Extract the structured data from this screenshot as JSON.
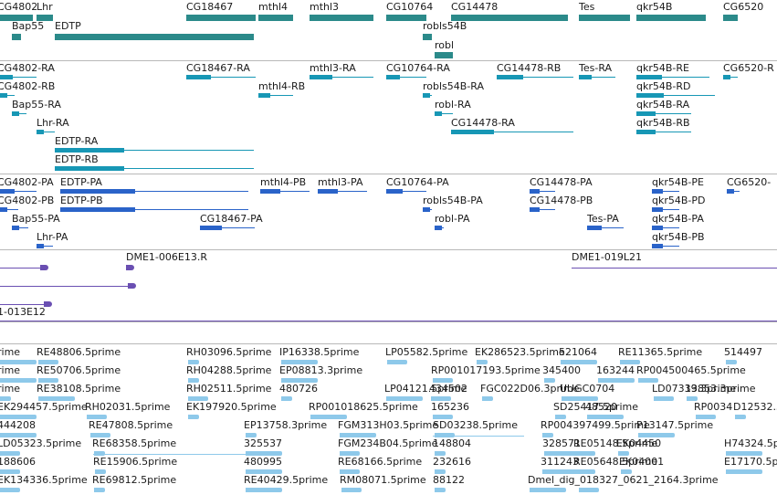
{
  "tracks": {
    "genes": {
      "labels": [
        "CG4802",
        "Lhr",
        "CG18467",
        "mthl4",
        "mthl3",
        "CG10764",
        "CG14478",
        "Tes",
        "qkr54B",
        "CG6520",
        "Bap55",
        "EDTP",
        "robls54B",
        "robl"
      ]
    },
    "transcripts": {
      "labels": [
        "CG4802-RA",
        "CG18467-RA",
        "mthl3-RA",
        "CG10764-RA",
        "CG14478-RB",
        "Tes-RA",
        "qkr54B-RE",
        "CG6520-R",
        "CG4802-RB",
        "mthl4-RB",
        "robls54B-RA",
        "qkr54B-RD",
        "Bap55-RA",
        "robl-RA",
        "qkr54B-RA",
        "Lhr-RA",
        "CG14478-RA",
        "qkr54B-RB",
        "EDTP-RA",
        "EDTP-RB"
      ]
    },
    "proteins": {
      "labels": [
        "CG4802-PA",
        "EDTP-PA",
        "mthl4-PB",
        "mthl3-PA",
        "CG10764-PA",
        "CG14478-PA",
        "qkr54B-PE",
        "CG6520-",
        "CG4802-PB",
        "EDTP-PB",
        "robls54B-PA",
        "CG14478-PB",
        "qkr54B-PD",
        "Bap55-PA",
        "CG18467-PA",
        "robl-PA",
        "Tes-PA",
        "qkr54B-PA",
        "Lhr-PA",
        "qkr54B-PB"
      ]
    },
    "clones": {
      "labels": [
        "DME1-006E13.R",
        "DME1-019L21",
        "1-013E12"
      ]
    },
    "ests": {
      "labels": [
        "rime",
        "RE48806.5prime",
        "RH03096.5prime",
        "IP16338.5prime",
        "LP05582.5prime",
        "EK286523.5prime",
        "521064",
        "RE11365.5prime",
        "514497",
        "rime",
        "RE50706.5prime",
        "RH04288.5prime",
        "EP08813.3prime",
        "RP001017193.5prime",
        "345400",
        "163244",
        "RP004500465.5prime",
        "rime",
        "RE38108.5prime",
        "RH02511.5prime",
        "480726",
        "LP04121.5prime",
        "434502",
        "FGC022D06.3prime",
        "UUGC0704",
        "LD07339.3prime",
        "13853.3prime",
        "EK294457.5prime",
        "RH02031.5prime",
        "EK197920.5prime",
        "RP001018625.5prime",
        "165236",
        "SD25417.5prime",
        "48520",
        "RP0034",
        "D12532.5prime",
        "444208",
        "RE47808.5prime",
        "EP13758.3prime",
        "FGM313H03.5prime",
        "SD03238.5prime",
        "RP004397499.5prime",
        "P13147.5prime",
        "LD05323.5prime",
        "RE68358.5prime",
        "325537",
        "FGM234B04.5prime",
        "148804",
        "328571",
        "RE05148.5prime",
        "EK04450",
        "H74324.5prime",
        "188606",
        "RE15906.5prime",
        "480995",
        "RE68166.5prime",
        "232616",
        "311243",
        "RE05648.5prime",
        "EK04001",
        "E17170.5prime",
        "EK134336.5prime",
        "RE69812.5prime",
        "RE40429.5prime",
        "RM08071.5prime",
        "88122",
        "Dmel_dig_018327_0621_2164.3prime"
      ]
    }
  },
  "colors": {
    "gene": "#2b8a8a",
    "transcript": "#1797b5",
    "protein": "#2a63c9",
    "clone": "#6a4fb2",
    "est": "#8ec9ea"
  }
}
